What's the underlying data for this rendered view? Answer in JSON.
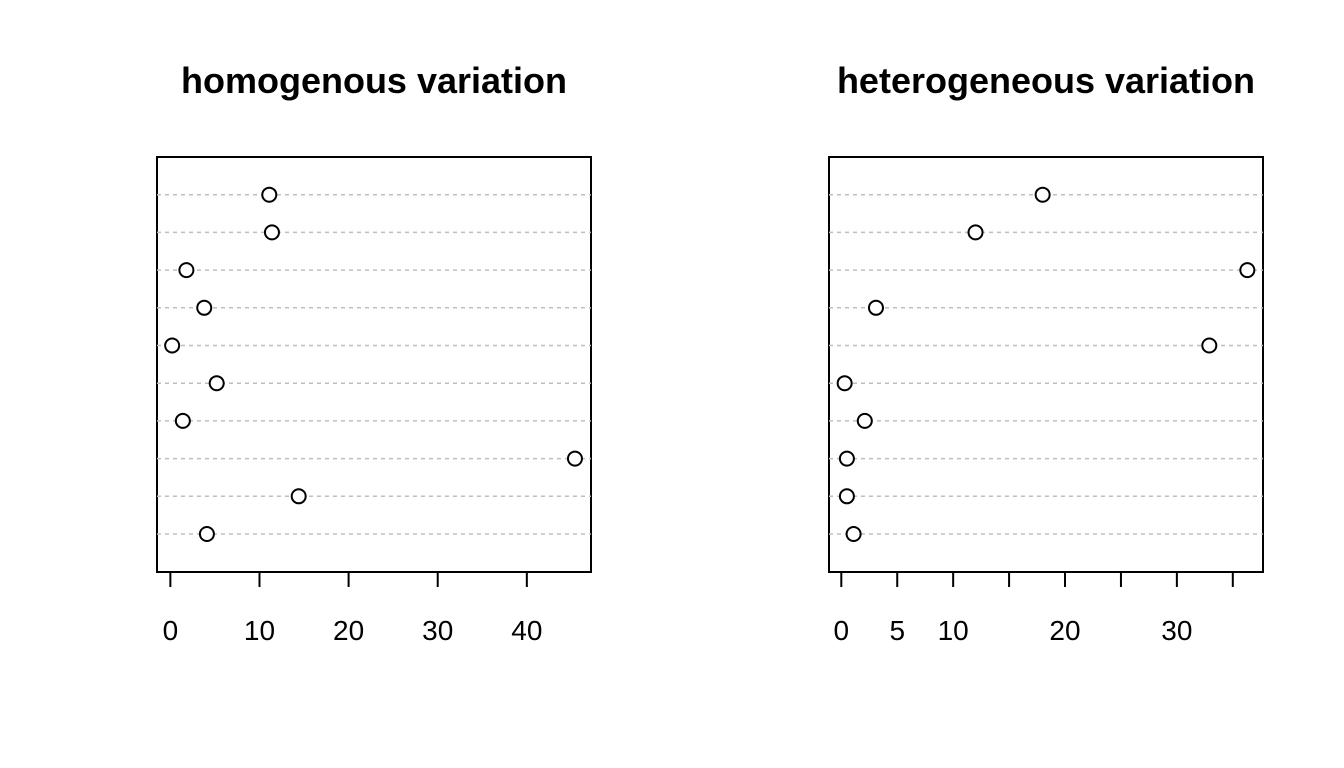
{
  "chart_data": [
    {
      "type": "scatter",
      "subtype": "dotchart",
      "title": "homogenous variation",
      "xlabel": "",
      "ylabel": "",
      "xlim": [
        -1.5,
        47.2
      ],
      "x_ticks": [
        0,
        10,
        20,
        30,
        40
      ],
      "x_tick_labels": [
        "0",
        "10",
        "20",
        "30",
        "40"
      ],
      "values": [
        4.1,
        14.4,
        45.4,
        1.4,
        5.2,
        0.2,
        3.8,
        1.8,
        11.4,
        11.1
      ],
      "grid": true
    },
    {
      "type": "scatter",
      "subtype": "dotchart",
      "title": "heterogeneous variation",
      "xlabel": "",
      "ylabel": "",
      "xlim": [
        -1.1,
        37.7
      ],
      "x_ticks": [
        0,
        5,
        10,
        15,
        20,
        25,
        30,
        35
      ],
      "x_tick_labels": [
        "0",
        "5",
        "10",
        "",
        "20",
        "",
        "30",
        ""
      ],
      "values": [
        1.1,
        0.5,
        0.5,
        2.1,
        0.3,
        32.9,
        3.1,
        36.3,
        12.0,
        18.0
      ],
      "grid": true
    }
  ]
}
